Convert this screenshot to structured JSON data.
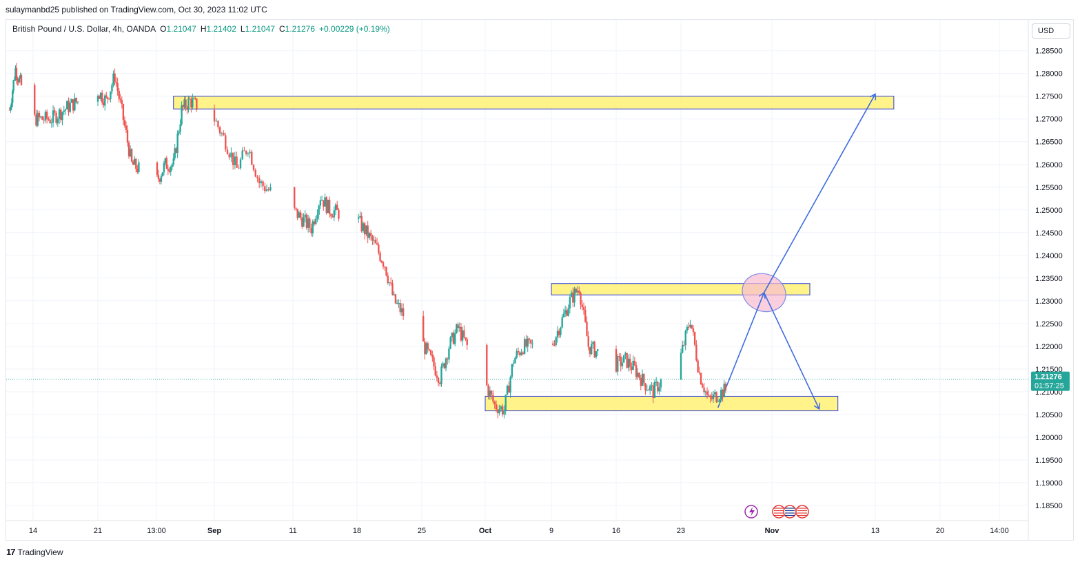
{
  "header": {
    "published": "sulaymanbd25 published on TradingView.com, Oct 30, 2023 11:02 UTC"
  },
  "legend": {
    "symbol": "British Pound / U.S. Dollar, 4h, OANDA",
    "open_label": "O",
    "open": "1.21047",
    "high_label": "H",
    "high": "1.21402",
    "low_label": "L",
    "low": "1.21047",
    "close_label": "C",
    "close": "1.21276",
    "change": "+0.00229 (+0.19%)"
  },
  "currency_button": "USD",
  "footer": {
    "brand": "TradingView",
    "logo_mark": "17"
  },
  "colors": {
    "up": "#26a69a",
    "down": "#ef5350",
    "zone_fill": "#fff176",
    "zone_border": "#2a3fd6",
    "arrow": "#3d6be0",
    "ellipse_fill": "#f8bbd0",
    "price_tag": "#26a69a"
  },
  "chart_data": {
    "type": "candlestick",
    "title": "British Pound / U.S. Dollar, 4h, OANDA",
    "ylim": [
      1.1815,
      1.2895
    ],
    "y_ticks": [
      "1.28500",
      "1.28000",
      "1.27500",
      "1.27000",
      "1.26500",
      "1.26000",
      "1.25500",
      "1.25000",
      "1.24500",
      "1.24000",
      "1.23500",
      "1.23000",
      "1.22500",
      "1.22000",
      "1.21500",
      "1.21000",
      "1.20500",
      "1.20000",
      "1.19500",
      "1.19000",
      "1.18500"
    ],
    "x_ticks": [
      "14",
      "21",
      "13:00",
      "Sep",
      "11",
      "18",
      "25",
      "Oct",
      "9",
      "16",
      "23",
      "Nov",
      "13",
      "20",
      "14:00"
    ],
    "current_price": "1.21276",
    "countdown": "01:57:25",
    "price_path": [
      [
        "Aug 10",
        1.272
      ],
      [
        "Aug 11",
        1.281
      ],
      [
        "Aug 14",
        1.27
      ],
      [
        "Aug 16",
        1.27
      ],
      [
        "Aug 18",
        1.273
      ],
      [
        "Aug 21",
        1.276
      ],
      [
        "Aug 22",
        1.274
      ],
      [
        "Aug 23",
        1.2795
      ],
      [
        "Aug 24",
        1.27
      ],
      [
        "Aug 25",
        1.26
      ],
      [
        "Aug 28",
        1.2565
      ],
      [
        "Aug 29",
        1.26
      ],
      [
        "Aug 30",
        1.26
      ],
      [
        "Aug 31",
        1.272
      ],
      [
        "Sep 1",
        1.274
      ],
      [
        "Sep 4",
        1.27
      ],
      [
        "Sep 5",
        1.265
      ],
      [
        "Sep 6",
        1.259
      ],
      [
        "Sep 7",
        1.264
      ],
      [
        "Sep 8",
        1.256
      ],
      [
        "Sep 11",
        1.25
      ],
      [
        "Sep 13",
        1.246
      ],
      [
        "Sep 14",
        1.253
      ],
      [
        "Sep 15",
        1.25
      ],
      [
        "Sep 18",
        1.248
      ],
      [
        "Sep 20",
        1.242
      ],
      [
        "Sep 21",
        1.238
      ],
      [
        "Sep 22",
        1.23
      ],
      [
        "Sep 25",
        1.221
      ],
      [
        "Sep 26",
        1.217
      ],
      [
        "Sep 27",
        1.213
      ],
      [
        "Sep 28",
        1.22
      ],
      [
        "Sep 29",
        1.224
      ],
      [
        "Oct 2",
        1.212
      ],
      [
        "Oct 3",
        1.207
      ],
      [
        "Oct 4",
        1.206
      ],
      [
        "Oct 5",
        1.217
      ],
      [
        "Oct 6",
        1.22
      ],
      [
        "Oct 9",
        1.22
      ],
      [
        "Oct 10",
        1.225
      ],
      [
        "Oct 11",
        1.23
      ],
      [
        "Oct 12",
        1.233
      ],
      [
        "Oct 13",
        1.22
      ],
      [
        "Oct 16",
        1.216
      ],
      [
        "Oct 17",
        1.217
      ],
      [
        "Oct 18",
        1.215
      ],
      [
        "Oct 19",
        1.212
      ],
      [
        "Oct 20",
        1.21
      ],
      [
        "Oct 23",
        1.218
      ],
      [
        "Oct 24",
        1.226
      ],
      [
        "Oct 25",
        1.214
      ],
      [
        "Oct 26",
        1.208
      ],
      [
        "Oct 27",
        1.2095
      ],
      [
        "Oct 30",
        1.2128
      ]
    ],
    "annotations": {
      "zones": [
        {
          "from": "Aug 30",
          "to": "Nov 15",
          "top": 1.275,
          "bottom": 1.2722
        },
        {
          "from": "Oct 9",
          "to": "Nov 6",
          "top": 1.2338,
          "bottom": 1.2313
        },
        {
          "from": "Oct 2",
          "to": "Nov 9",
          "top": 1.209,
          "bottom": 1.2058
        }
      ],
      "arrows": [
        {
          "from": [
            "Oct 27",
            1.2065
          ],
          "to": [
            "Nov 1",
            1.2318
          ]
        },
        {
          "from": [
            "Nov 1",
            1.2318
          ],
          "to": [
            "Nov 13",
            1.2755
          ]
        },
        {
          "from": [
            "Nov 1",
            1.2318
          ],
          "to": [
            "Nov 7",
            1.2062
          ]
        }
      ],
      "ellipse": {
        "center": [
          "Nov 1",
          1.2318
        ]
      },
      "event_icons": [
        "lightning-icon",
        "us-flag-icon",
        "uk-flag-icon",
        "us-flag-icon"
      ]
    }
  }
}
